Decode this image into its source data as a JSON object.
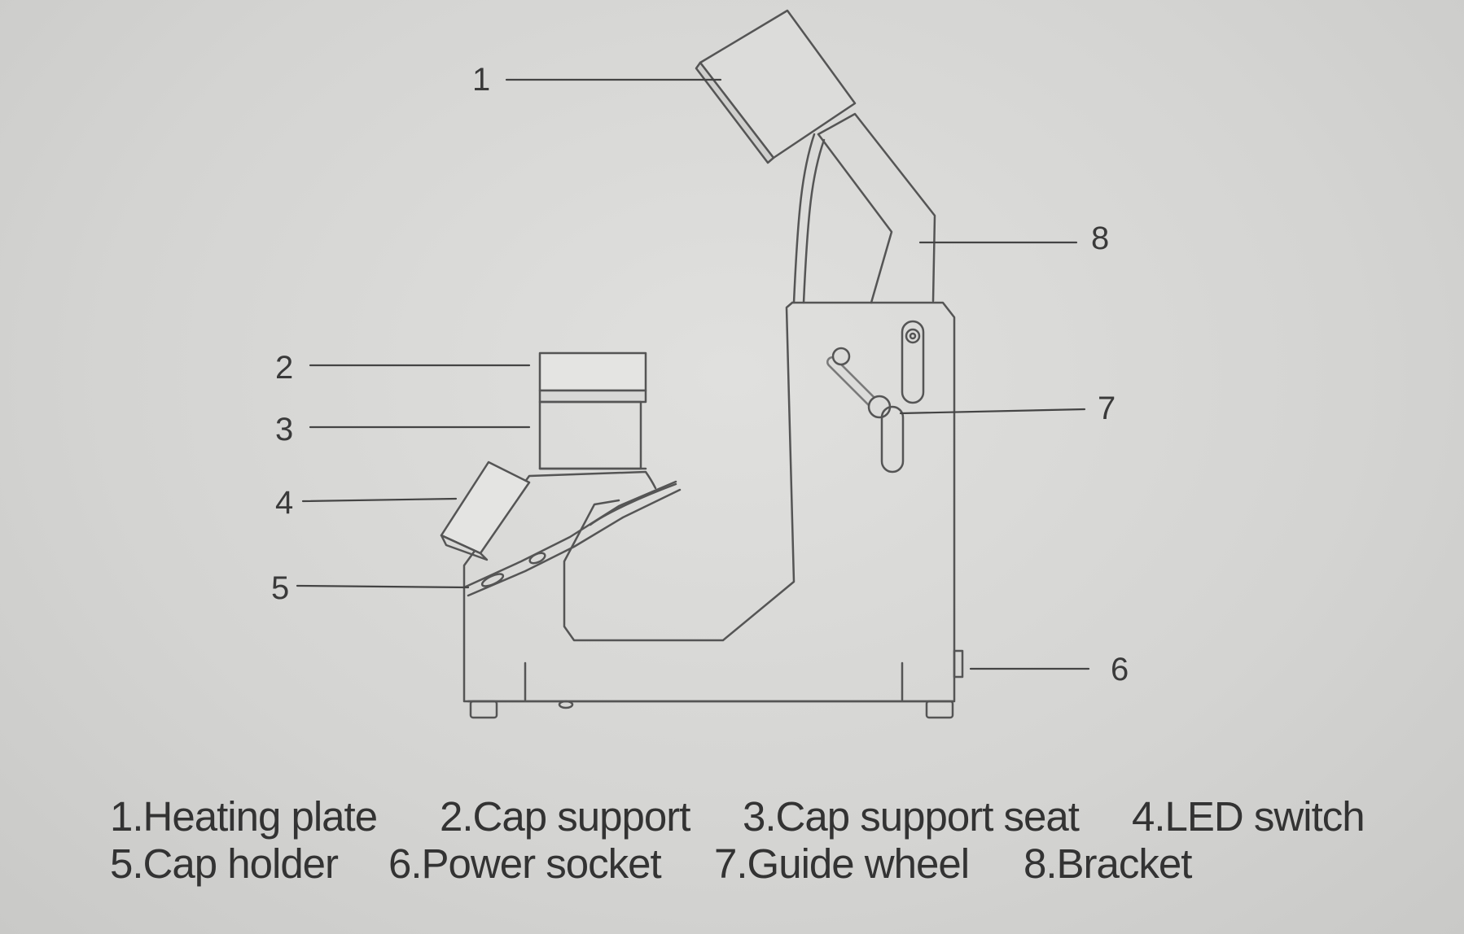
{
  "callouts": {
    "c1": "1",
    "c2": "2",
    "c3": "3",
    "c4": "4",
    "c5": "5",
    "c6": "6",
    "c7": "7",
    "c8": "8"
  },
  "legend": {
    "row1": [
      "1.Heating plate",
      "2.Cap support",
      "3.Cap support seat",
      "4.LED switch"
    ],
    "row2": [
      "5.Cap holder",
      "6.Power socket",
      "7.Guide wheel",
      "8.Bracket"
    ]
  },
  "colors": {
    "background": "#d6d6d4",
    "line": "#555555",
    "text": "#333333"
  }
}
